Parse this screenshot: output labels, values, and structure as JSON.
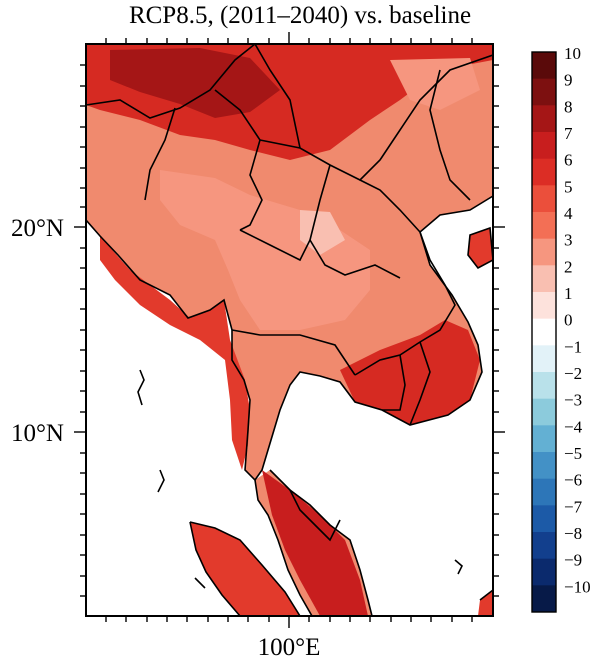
{
  "title": "RCP8.5, (2011–2040) vs. baseline",
  "map": {
    "lat_labels": [
      "20°N",
      "10°N"
    ],
    "lon_labels": [
      "100°E"
    ],
    "colors": {
      "land_background": "#f08a6e",
      "coastline": "#000000",
      "ocean": "#ffffff"
    }
  },
  "colorbar": {
    "labels": [
      "10",
      "9",
      "8",
      "7",
      "6",
      "5",
      "4",
      "3",
      "2",
      "1",
      "0",
      "−1",
      "−2",
      "−3",
      "−4",
      "−5",
      "−6",
      "−7",
      "−8",
      "−9",
      "−10"
    ],
    "colors": [
      "#5a0a0a",
      "#7d1010",
      "#a51616",
      "#c81e1e",
      "#dc2d25",
      "#eb4f3b",
      "#f36f55",
      "#f6967f",
      "#f9bfb1",
      "#fde2dc",
      "#ffffff",
      "#e2f2f8",
      "#b9e1ea",
      "#8ccbdc",
      "#63b0d3",
      "#4391c6",
      "#2d76b8",
      "#1c5aa7",
      "#123f8d",
      "#0b2a6d",
      "#071a48"
    ]
  }
}
